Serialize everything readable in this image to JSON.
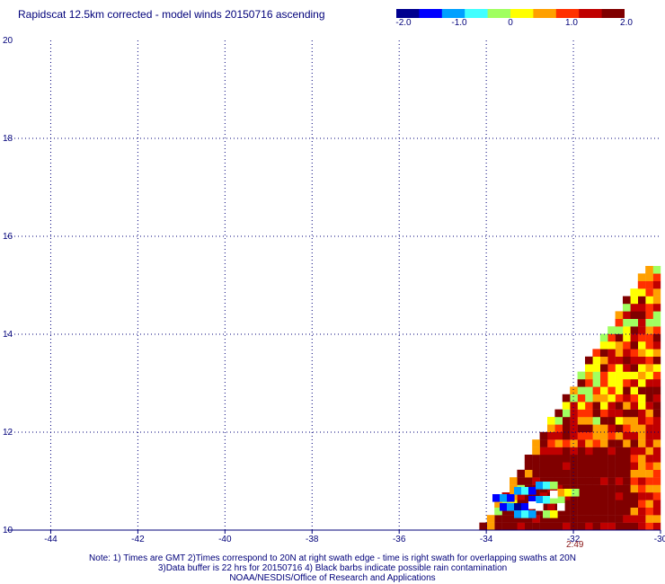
{
  "title": "Rapidscat 12.5km corrected - model winds 20150716 ascending",
  "colorbar": {
    "labels": [
      "-2.0",
      "-1.0",
      "0",
      "1.0",
      "2.0"
    ],
    "min": -2.0,
    "max": 2.0,
    "colors": [
      "#00008f",
      "#0000ff",
      "#00a0ff",
      "#40ffff",
      "#a0ff60",
      "#ffff00",
      "#ffa000",
      "#ff3000",
      "#c00000",
      "#800000"
    ]
  },
  "chart_data": {
    "type": "heatmap",
    "xlim": [
      -45,
      -30
    ],
    "ylim": [
      10,
      20
    ],
    "x_ticks": [
      "-44",
      "-42",
      "-40",
      "-38",
      "-36",
      "-34",
      "-32",
      "-30"
    ],
    "y_ticks": [
      "20",
      "18",
      "16",
      "14",
      "12",
      "10"
    ],
    "grid": true,
    "cell_size_deg": 0.125,
    "no_data_color": "#ffffff"
  },
  "time_label": "2:49",
  "notes": [
    "Note: 1) Times are GMT 2)Times correspond to 20N at right swath edge - time is right swath for overlapping swaths at 20N",
    "3)Data buffer is 22 hrs for 20150716 4) Black barbs indicate possible rain contamination",
    "NOAA/NESDIS/Office of Research and Applications"
  ]
}
